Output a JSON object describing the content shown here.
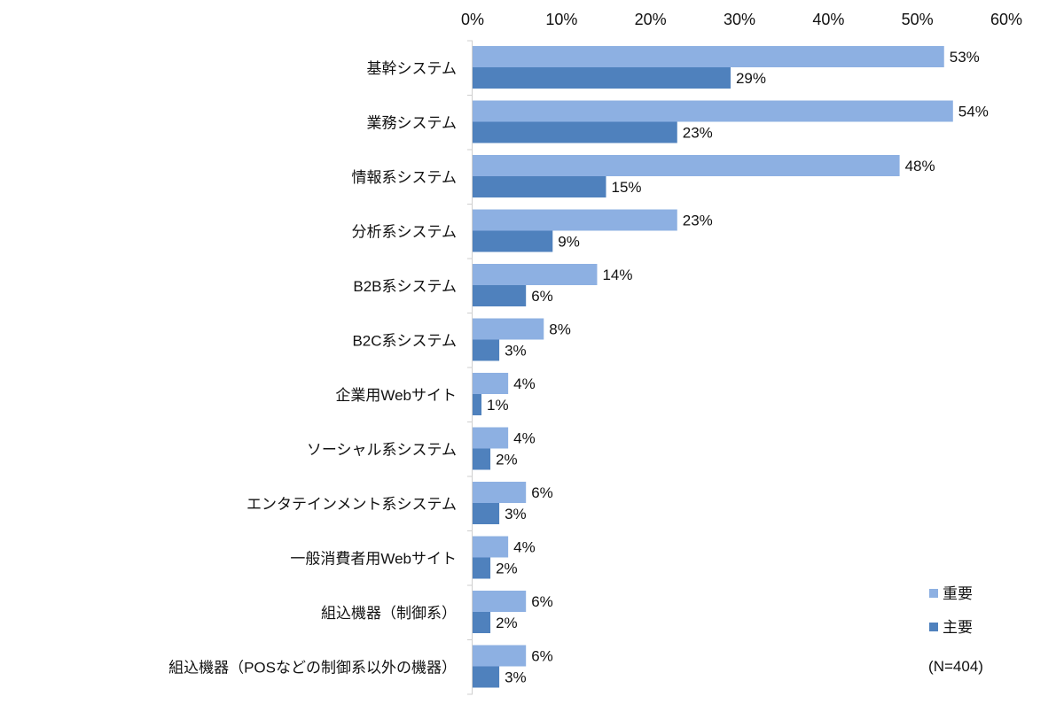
{
  "chart_data": {
    "type": "bar",
    "orientation": "horizontal",
    "categories": [
      "基幹システム",
      "業務システム",
      "情報系システム",
      "分析系システム",
      "B2B系システム",
      "B2C系システム",
      "企業用Webサイト",
      "ソーシャル系システム",
      "エンタテインメント系システム",
      "一般消費者用Webサイト",
      "組込機器（制御系）",
      "組込機器（POSなどの制御系以外の機器）"
    ],
    "series": [
      {
        "name": "重要",
        "color": "#8db0e2",
        "values": [
          53,
          54,
          48,
          23,
          14,
          8,
          4,
          4,
          6,
          4,
          6,
          6
        ]
      },
      {
        "name": "主要",
        "color": "#4f81bd",
        "values": [
          29,
          23,
          15,
          9,
          6,
          3,
          1,
          2,
          3,
          2,
          2,
          3
        ]
      }
    ],
    "xlim": [
      0,
      60
    ],
    "xticks": [
      "0%",
      "10%",
      "20%",
      "30%",
      "40%",
      "50%",
      "60%"
    ],
    "xaxis_position": "top",
    "grid": false,
    "legend_position": "bottom-right",
    "annotation": "(N=404)",
    "data_label_suffix": "%"
  }
}
